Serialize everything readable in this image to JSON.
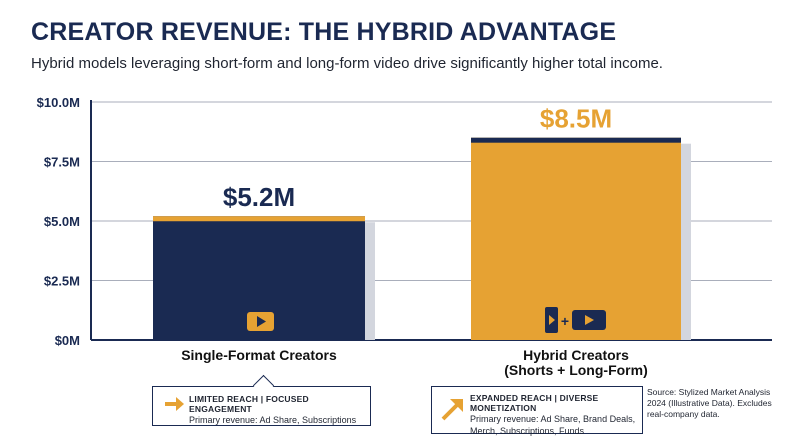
{
  "header": {
    "title": "CREATOR REVENUE: THE HYBRID ADVANTAGE",
    "subtitle": "Hybrid models leveraging short-form and long-form video drive significantly higher total income."
  },
  "chart_data": {
    "type": "bar",
    "categories": [
      "Single-Format Creators",
      "Hybrid Creators"
    ],
    "category_sublabels": [
      "",
      "(Shorts + Long-Form)"
    ],
    "values": [
      5.2,
      8.5
    ],
    "value_labels": [
      "$5.2M",
      "$8.5M"
    ],
    "bar_colors": [
      "#1a2a52",
      "#e6a233"
    ],
    "cap_colors": [
      "#e6a233",
      "#1a2a52"
    ],
    "label_colors": [
      "#1a2a52",
      "#e6a233"
    ],
    "ylim": [
      0,
      10
    ],
    "yticks": [
      0,
      2.5,
      5,
      7.5,
      10
    ],
    "ytick_labels": [
      "$0M",
      "$2.5M",
      "$5.0M",
      "$7.5M",
      "$10.0M"
    ],
    "grid": true,
    "icons": [
      "play-icon",
      "shorts-plus-play-icon"
    ],
    "icon_plus": "+"
  },
  "notes": [
    {
      "heading": "LIMITED REACH | FOCUSED ENGAGEMENT",
      "text": "Primary revenue: Ad Share, Subscriptions",
      "icon": "arrow-right-icon"
    },
    {
      "heading": "EXPANDED REACH | DIVERSE MONETIZATION",
      "text": "Primary revenue: Ad Share, Brand Deals, Merch, Subscriptions, Funds",
      "icon": "arrow-up-right-icon"
    }
  ],
  "source": "Source: Stylized Market Analysis 2024 (Illustrative Data). Excludes real-company data.",
  "colors": {
    "navy": "#1a2a52",
    "gold": "#e6a233",
    "shadow": "#d3d6de"
  }
}
